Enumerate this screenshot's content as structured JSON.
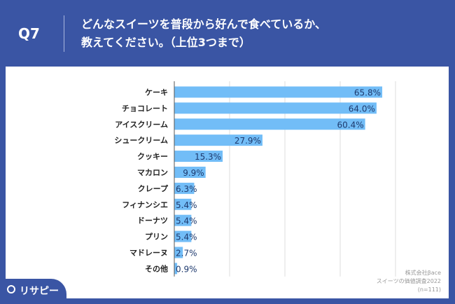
{
  "header": {
    "question": "Q7",
    "title_line1": "どんなスイーツを普段から好んで食べているか、",
    "title_line2": "教えてください。（上位3つまで）"
  },
  "source": {
    "line1": "株式会社βace",
    "line2": "スイーツの価値調査2022",
    "line3": "(n=111)"
  },
  "logo": {
    "text": "リサピー"
  },
  "colors": {
    "background": "#3a55a4",
    "bar": "#72bdf7",
    "label": "#1e3a6e"
  },
  "chart_data": {
    "type": "bar",
    "orientation": "horizontal",
    "categories": [
      "ケーキ",
      "チョコレート",
      "アイスクリーム",
      "シュークリーム",
      "クッキー",
      "マカロン",
      "クレープ",
      "フィナンシエ",
      "ドーナツ",
      "プリン",
      "マドレーヌ",
      "その他"
    ],
    "values": [
      65.8,
      64.0,
      60.4,
      27.9,
      15.3,
      9.9,
      6.3,
      5.4,
      5.4,
      5.4,
      2.7,
      0.9
    ],
    "labels": [
      "65.8%",
      "64.0%",
      "60.4%",
      "27.9%",
      "15.3%",
      "9.9%",
      "6.3%",
      "5.4%",
      "5.4%",
      "5.4%",
      "2.7%",
      "0.9%"
    ],
    "xlim": [
      0,
      70
    ],
    "grid": true,
    "unit": "%"
  }
}
